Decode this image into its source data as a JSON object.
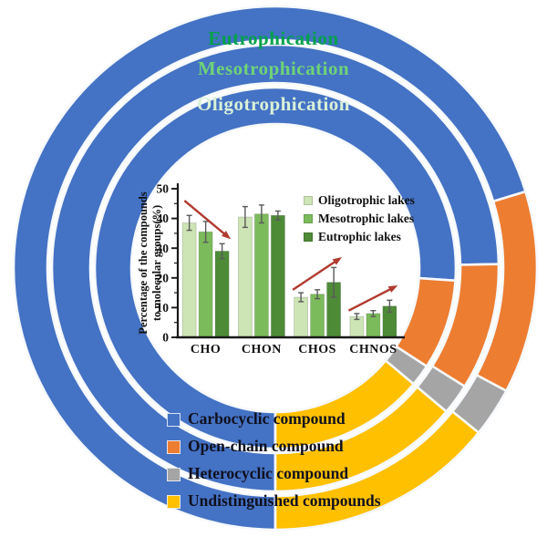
{
  "chart_data": [
    {
      "type": "bar",
      "title": "",
      "categories": [
        "CHO",
        "CHON",
        "CHOS",
        "CHNOS"
      ],
      "series": [
        {
          "name": "Oligotrophic lakes",
          "color": "#CDE4B5",
          "values": [
            38.5,
            40.5,
            13.5,
            7
          ],
          "errors": [
            2.5,
            3.5,
            1.5,
            1
          ]
        },
        {
          "name": "Mesotrophic lakes",
          "color": "#7CBB5B",
          "values": [
            35.5,
            41.5,
            14.5,
            8
          ],
          "errors": [
            3.5,
            3.0,
            1.5,
            1
          ]
        },
        {
          "name": "Eutrophic lakes",
          "color": "#4E8B37",
          "values": [
            29,
            41,
            18.5,
            10.5
          ],
          "errors": [
            2.5,
            1.5,
            5.0,
            2
          ]
        }
      ],
      "xlabel": "",
      "ylabel_lines": [
        "Percentage of the compounds",
        "to molecular groups(%)"
      ],
      "ylim": [
        0,
        50
      ],
      "yticks": [
        0,
        10,
        20,
        30,
        40,
        50
      ],
      "minor_tick_step": 5,
      "grid": false,
      "legend_position": "upper right",
      "annotations": {
        "arrow_color": "#B03A2E",
        "arrows": [
          {
            "trend": "decreasing",
            "over": "CHO",
            "x1": 0.12,
            "y1": 46,
            "x2": 0.95,
            "y2": 33
          },
          {
            "trend": "increasing",
            "over": "CHOS",
            "x1": 2.06,
            "y1": 16,
            "x2": 2.94,
            "y2": 27
          },
          {
            "trend": "increasing",
            "over": "CHNOS",
            "x1": 3.06,
            "y1": 9,
            "x2": 3.94,
            "y2": 17.5
          }
        ]
      }
    },
    {
      "type": "donut-rings",
      "description": "Three concentric trophic-state rings showing compound-class composition",
      "ring_labels": [
        {
          "text": "Eutrophication",
          "color": "#00A14B"
        },
        {
          "text": "Mesotrophication",
          "color": "#6FD377"
        },
        {
          "text": "Oligotrophication",
          "color": "#D9F1D8"
        }
      ],
      "compound_colors": {
        "carbocyclic": "#4472C4",
        "open_chain": "#ED7D31",
        "heterocyclic": "#A5A5A5",
        "undistinguished": "#FFC000"
      },
      "rings": [
        {
          "label": "Eutrophication",
          "position": "outer",
          "segments": [
            {
              "compound": "carbocyclic",
              "start_deg": 180,
              "end_deg": 433
            },
            {
              "compound": "open_chain",
              "start_deg": 73,
              "end_deg": 118
            },
            {
              "compound": "heterocyclic",
              "start_deg": 118,
              "end_deg": 129
            },
            {
              "compound": "undistinguished",
              "start_deg": 129,
              "end_deg": 180
            }
          ]
        },
        {
          "label": "Mesotrophication",
          "position": "middle",
          "segments": [
            {
              "compound": "carbocyclic",
              "start_deg": 180,
              "end_deg": 449
            },
            {
              "compound": "open_chain",
              "start_deg": 89,
              "end_deg": 122
            },
            {
              "compound": "heterocyclic",
              "start_deg": 122,
              "end_deg": 130
            },
            {
              "compound": "undistinguished",
              "start_deg": 130,
              "end_deg": 180
            }
          ]
        },
        {
          "label": "Oligotrophication",
          "position": "inner",
          "segments": [
            {
              "compound": "carbocyclic",
              "start_deg": 180,
              "end_deg": 454
            },
            {
              "compound": "open_chain",
              "start_deg": 94,
              "end_deg": 123
            },
            {
              "compound": "heterocyclic",
              "start_deg": 123,
              "end_deg": 130
            },
            {
              "compound": "undistinguished",
              "start_deg": 130,
              "end_deg": 180
            }
          ]
        }
      ],
      "legend": [
        {
          "label": "Carbocyclic compound",
          "color": "#4472C4"
        },
        {
          "label": "Open-chain compound",
          "color": "#ED7D31"
        },
        {
          "label": "Heterocyclic compound",
          "color": "#A5A5A5"
        },
        {
          "label": "Undistinguished compounds",
          "color": "#FFC000"
        }
      ]
    }
  ]
}
